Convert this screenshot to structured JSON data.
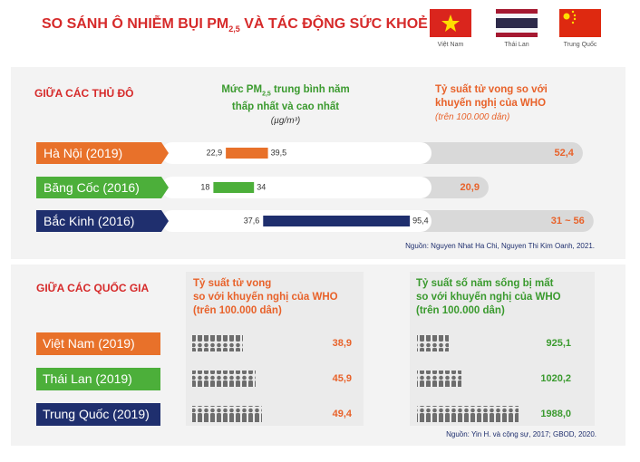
{
  "header": {
    "title_before": "SO SÁNH Ô NHIỄM BỤI PM",
    "title_sub": "2,5",
    "title_after": " VÀ TÁC ĐỘNG SỨC KHOẺ",
    "flags": [
      "Việt Nam",
      "Thái Lan",
      "Trung Quốc"
    ]
  },
  "capitals": {
    "heading": "GIỮA CÁC THỦ ĐÔ",
    "pm_header": {
      "line1_before": "Mức PM",
      "line1_sub": "2,5",
      "line1_after": " trung bình năm",
      "line2": "thấp nhất và cao nhất",
      "unit": "(µg/m³)"
    },
    "mortality_header": {
      "line1": "Tỷ suất tử vong so với",
      "line2": "khuyến nghị của WHO",
      "note": "(trên 100.000 dân)"
    },
    "rows": [
      {
        "label": "Hà Nội (2019)",
        "pm25": {
          "values": [
            22.9,
            39.5
          ],
          "value_labels": [
            "22,9",
            "39,5"
          ]
        },
        "mortality": {
          "values": [
            52.4
          ],
          "value_labels": [
            "52,4"
          ]
        }
      },
      {
        "label": "Băng Cốc (2016)",
        "pm25": {
          "values": [
            18,
            34
          ],
          "value_labels": [
            "18",
            "34"
          ]
        },
        "mortality": {
          "values": [
            20.9
          ],
          "value_labels": [
            "20,9"
          ]
        }
      },
      {
        "label": "Bắc Kinh (2016)",
        "pm25": {
          "values": [
            37.6,
            95.4
          ],
          "value_labels": [
            "37,6",
            "95,4"
          ]
        },
        "mortality": {
          "values": [
            31,
            56
          ],
          "value_labels": [
            "31 ~ 56"
          ]
        }
      }
    ],
    "source": "Nguồn: Nguyen Nhat Ha Chi, Nguyen Thi Kim Oanh, 2021."
  },
  "countries": {
    "heading": "GIỮA CÁC QUỐC GIA",
    "mortality_header": {
      "line1": "Tỷ suất tử vong",
      "line2": "so với khuyến nghị của WHO",
      "line3": "(trên 100.000 dân)"
    },
    "yll_header": {
      "line1": "Tỷ suất số năm sống bị mất",
      "line2": "so với khuyến nghị của WHO",
      "line3": "(trên 100.000 dân)"
    },
    "rows": [
      {
        "label": "Việt Nam (2019)",
        "mortality": "38,9",
        "yll": "925,1"
      },
      {
        "label": "Thái Lan (2019)",
        "mortality": "45,9",
        "yll": "1020,2"
      },
      {
        "label": "Trung Quốc (2019)",
        "mortality": "49,4",
        "yll": "1988,0"
      }
    ],
    "source": "Nguồn: Yin H. và cộng sự, 2017; GBOD, 2020."
  }
}
